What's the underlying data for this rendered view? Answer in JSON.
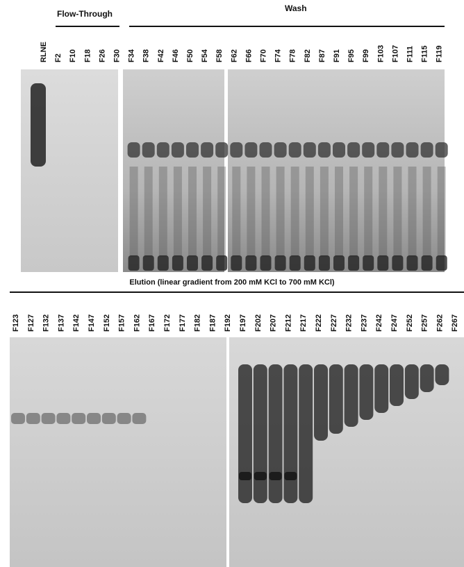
{
  "header": {
    "flow_through": "Flow-Through",
    "wash": "Wash"
  },
  "top_lanes": [
    "RLNE",
    "F2",
    "F10",
    "F18",
    "F26",
    "F30",
    "F34",
    "F38",
    "F42",
    "F46",
    "F50",
    "F54",
    "F58",
    "F62",
    "F66",
    "F70",
    "F74",
    "F78",
    "F82",
    "F87",
    "F91",
    "F95",
    "F99",
    "F103",
    "F107",
    "F111",
    "F115",
    "F119"
  ],
  "elution_caption": "Elution (linear gradient from 200 mM KCl to 700 mM KCl)",
  "bottom_lanes": [
    "F123",
    "F127",
    "F132",
    "F137",
    "F142",
    "F147",
    "F152",
    "F157",
    "F162",
    "F167",
    "F172",
    "F177",
    "F182",
    "F187",
    "F192",
    "F197",
    "F202",
    "F207",
    "F212",
    "F217",
    "F222",
    "F227",
    "F232",
    "F237",
    "F242",
    "F247",
    "F252",
    "F257",
    "F262",
    "F267"
  ]
}
